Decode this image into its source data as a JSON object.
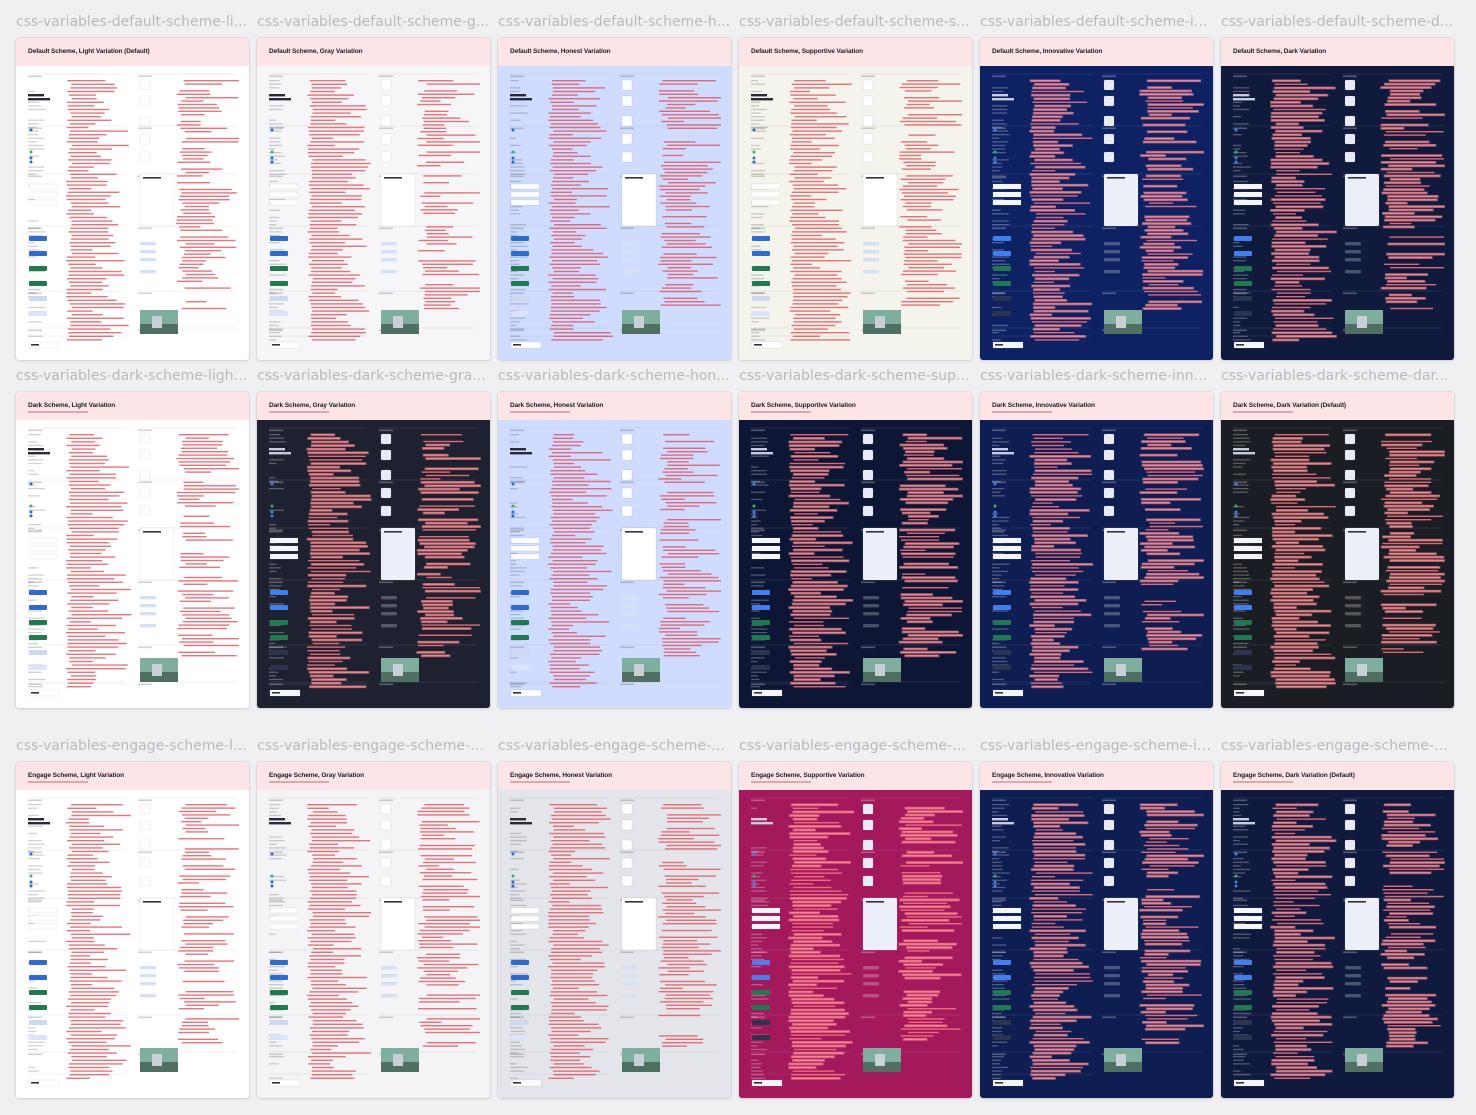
{
  "cells": [
    {
      "label": "css-variables-default-scheme-li...",
      "title": "Default Scheme, Light Variation (Default)",
      "bg": "#ffffff",
      "theme": "light",
      "accent": "#2d6bd3"
    },
    {
      "label": "css-variables-default-scheme-g...",
      "title": "Default Scheme, Gray Variation",
      "bg": "#f6f6f8",
      "theme": "light",
      "accent": "#2d6bd3"
    },
    {
      "label": "css-variables-default-scheme-h...",
      "title": "Default Scheme, Honest Variation",
      "bg": "#cfdcff",
      "theme": "light",
      "accent": "#2d6bd3"
    },
    {
      "label": "css-variables-default-scheme-s...",
      "title": "Default Scheme, Supportive Variation",
      "bg": "#f4f4ec",
      "theme": "light",
      "accent": "#2d6bd3"
    },
    {
      "label": "css-variables-default-scheme-in...",
      "title": "Default Scheme, Innovative Variation",
      "bg": "#0e2163",
      "theme": "dark",
      "accent": "#3f7ff0"
    },
    {
      "label": "css-variables-default-scheme-d...",
      "title": "Default Scheme, Dark Variation",
      "bg": "#0f1a3d",
      "theme": "dark",
      "accent": "#3f7ff0"
    },
    {
      "label": "css-variables-dark-scheme-light...",
      "title": "Dark Scheme, Light Variation",
      "bg": "#ffffff",
      "theme": "light",
      "accent": "#2d6bd3"
    },
    {
      "label": "css-variables-dark-scheme-gra...",
      "title": "Dark Scheme, Gray Variation",
      "bg": "#1e2130",
      "theme": "dark",
      "accent": "#3f7ff0"
    },
    {
      "label": "css-variables-dark-scheme-hon...",
      "title": "Dark Scheme, Honest Variation",
      "bg": "#cfdcff",
      "theme": "light",
      "accent": "#2d6bd3"
    },
    {
      "label": "css-variables-dark-scheme-sup...",
      "title": "Dark Scheme, Supportive Variation",
      "bg": "#0d1735",
      "theme": "dark",
      "accent": "#3f7ff0"
    },
    {
      "label": "css-variables-dark-scheme-inno...",
      "title": "Dark Scheme, Innovative Variation",
      "bg": "#0e1d52",
      "theme": "dark",
      "accent": "#3f7ff0"
    },
    {
      "label": "css-variables-dark-scheme-dar...",
      "title": "Dark Scheme, Dark Variation (Default)",
      "bg": "#1b1d24",
      "theme": "dark",
      "accent": "#3f7ff0"
    },
    {
      "label": "css-variables-engage-scheme-li...",
      "title": "Engage Scheme, Light Variation",
      "bg": "#ffffff",
      "theme": "light",
      "accent": "#2d6bd3"
    },
    {
      "label": "css-variables-engage-scheme-g...",
      "title": "Engage Scheme, Gray Variation",
      "bg": "#f4f4f6",
      "theme": "light",
      "accent": "#2d6bd3"
    },
    {
      "label": "css-variables-engage-scheme-h...",
      "title": "Engage Scheme, Honest Variation",
      "bg": "#e4e5eb",
      "theme": "light",
      "accent": "#2d6bd3"
    },
    {
      "label": "css-variables-engage-scheme-s...",
      "title": "Engage Scheme, Supportive Variation",
      "bg": "#a3195b",
      "theme": "dark",
      "accent": "#4a7ff0"
    },
    {
      "label": "css-variables-engage-scheme-in...",
      "title": "Engage Scheme, Innovative Variation",
      "bg": "#0e1d52",
      "theme": "dark",
      "accent": "#3f7ff0"
    },
    {
      "label": "css-variables-engage-scheme-d...",
      "title": "Engage Scheme, Dark Variation (Default)",
      "bg": "#101a3f",
      "theme": "dark",
      "accent": "#3f7ff0"
    }
  ]
}
